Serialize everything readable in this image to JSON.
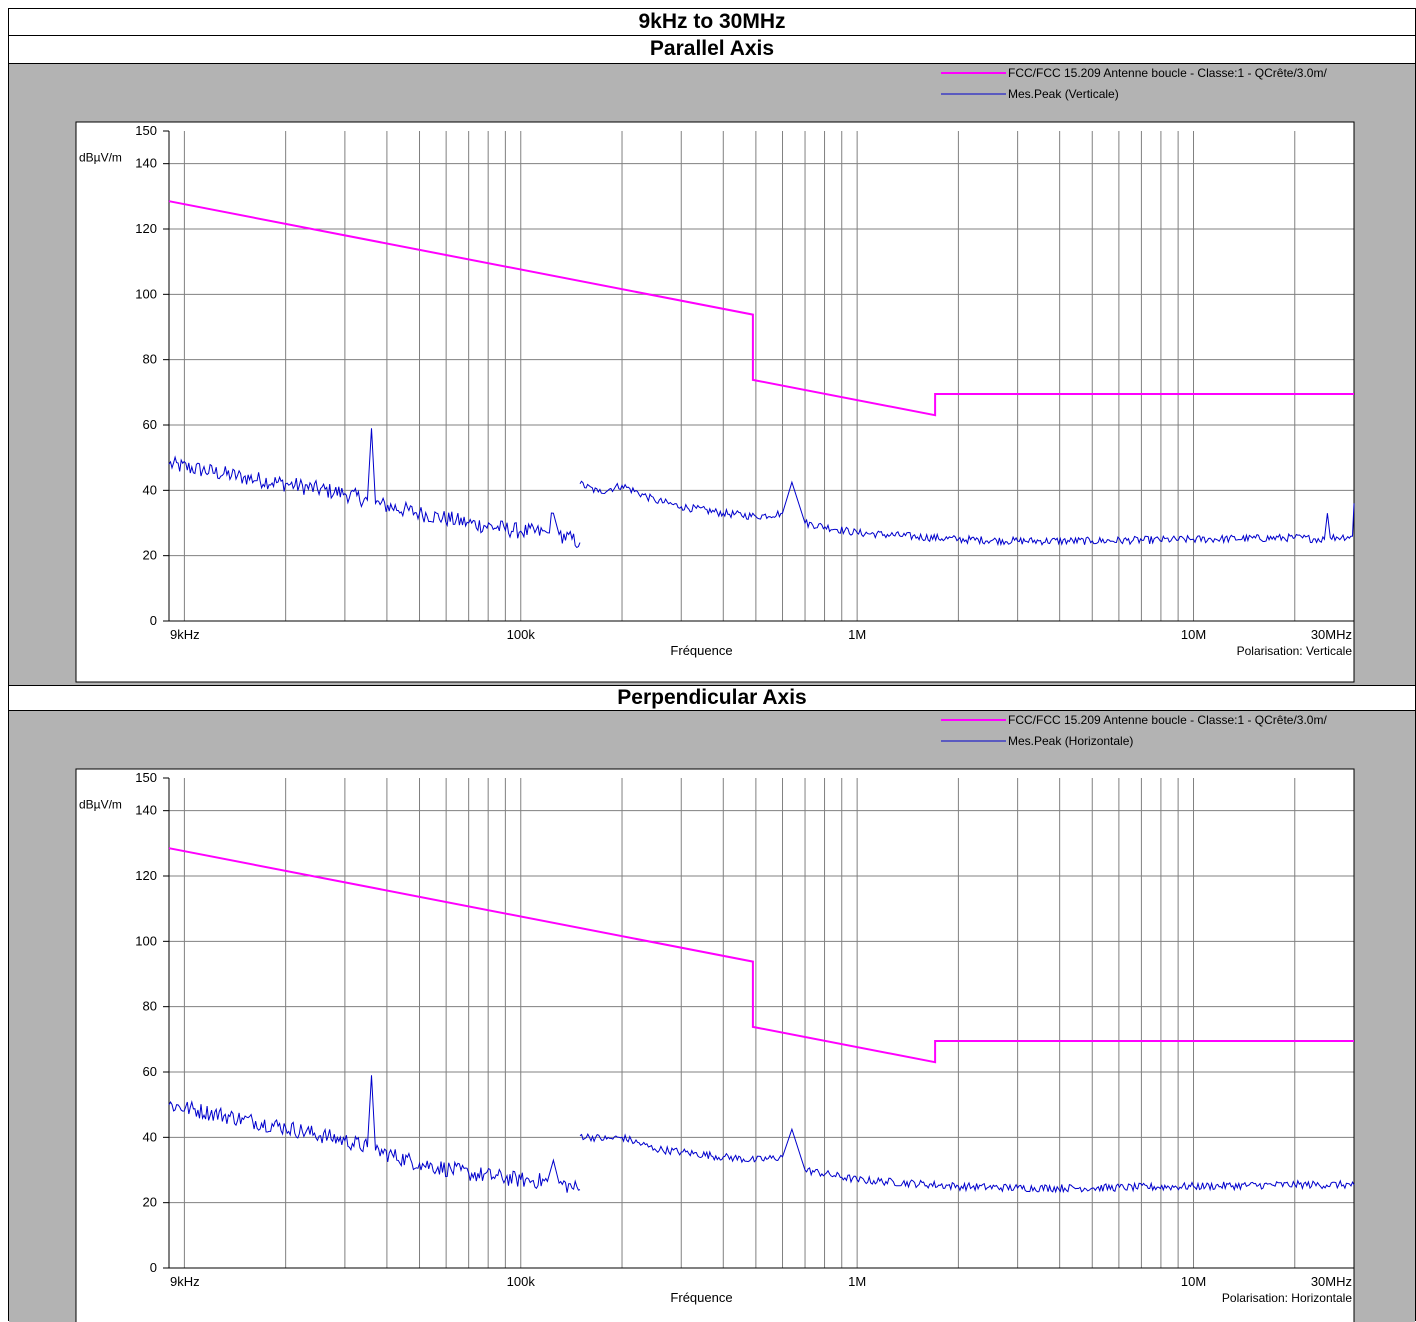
{
  "header": {
    "title": "9kHz to 30MHz"
  },
  "panels": [
    {
      "title": "Parallel Axis",
      "polarisation": "Polarisation: Verticale"
    },
    {
      "title": "Perpendicular Axis",
      "polarisation": "Polarisation: Horizontale"
    }
  ],
  "colors": {
    "limit": "#ff00ff",
    "measurement": "#0000cc",
    "panel_bg": "#b3b3b3",
    "plot_bg": "#ffffff",
    "grid": "#808080"
  },
  "chart_data": [
    {
      "type": "line",
      "title": "Parallel Axis",
      "ylabel": "dBµV/m",
      "xlabel": "Fréquence",
      "x_scale": "log",
      "xlim": [
        9000,
        30000000
      ],
      "ylim": [
        0,
        150
      ],
      "y_ticks": [
        0,
        20,
        40,
        60,
        80,
        100,
        120,
        140,
        150
      ],
      "x_tick_labels": [
        {
          "value": 9000,
          "label": "9kHz"
        },
        {
          "value": 100000,
          "label": "100k"
        },
        {
          "value": 1000000,
          "label": "1M"
        },
        {
          "value": 10000000,
          "label": "10M"
        },
        {
          "value": 30000000,
          "label": "30MHz"
        }
      ],
      "grid": true,
      "legend_position": "top-right",
      "polarisation": "Polarisation: Verticale",
      "series": [
        {
          "name": "FCC/FCC  15.209 Antenne boucle - Classe:1 - QCrête/3.0m/",
          "style": "limit",
          "points": [
            [
              9000,
              128.5
            ],
            [
              490000,
              93.8
            ],
            [
              490000,
              73.8
            ],
            [
              1705000,
              63.0
            ],
            [
              1705000,
              69.5
            ],
            [
              30000000,
              69.5
            ]
          ]
        },
        {
          "name": "Mes.Peak (Verticale)",
          "style": "measurement",
          "segments": [
            [
              [
                9000,
                48
              ],
              [
                15000,
                44
              ],
              [
                20000,
                42
              ],
              [
                30000,
                39
              ],
              [
                35000,
                37
              ],
              [
                36000,
                59
              ],
              [
                37000,
                36
              ],
              [
                50000,
                33
              ],
              [
                70000,
                30
              ],
              [
                100000,
                27.5
              ],
              [
                120000,
                27
              ],
              [
                125000,
                33
              ],
              [
                130000,
                26.5
              ],
              [
                150000,
                24
              ]
            ],
            [
              [
                150000,
                42
              ],
              [
                170000,
                39.5
              ],
              [
                200000,
                41.5
              ],
              [
                250000,
                37
              ],
              [
                300000,
                35
              ],
              [
                400000,
                33
              ],
              [
                500000,
                32
              ],
              [
                600000,
                33
              ],
              [
                640000,
                42.5
              ],
              [
                700000,
                30
              ],
              [
                1000000,
                27
              ],
              [
                2000000,
                25
              ],
              [
                3000000,
                24.5
              ],
              [
                5000000,
                24.5
              ],
              [
                10000000,
                25
              ],
              [
                20000000,
                25.5
              ],
              [
                24500000,
                25
              ],
              [
                25000000,
                33
              ],
              [
                25500000,
                25.5
              ],
              [
                29700000,
                26
              ],
              [
                30000000,
                36
              ]
            ]
          ]
        }
      ]
    },
    {
      "type": "line",
      "title": "Perpendicular Axis",
      "ylabel": "dBµV/m",
      "xlabel": "Fréquence",
      "x_scale": "log",
      "xlim": [
        9000,
        30000000
      ],
      "ylim": [
        0,
        150
      ],
      "y_ticks": [
        0,
        20,
        40,
        60,
        80,
        100,
        120,
        140,
        150
      ],
      "x_tick_labels": [
        {
          "value": 9000,
          "label": "9kHz"
        },
        {
          "value": 100000,
          "label": "100k"
        },
        {
          "value": 1000000,
          "label": "1M"
        },
        {
          "value": 10000000,
          "label": "10M"
        },
        {
          "value": 30000000,
          "label": "30MHz"
        }
      ],
      "grid": true,
      "legend_position": "top-right",
      "polarisation": "Polarisation: Horizontale",
      "series": [
        {
          "name": "FCC/FCC  15.209 Antenne boucle - Classe:1 - QCrête/3.0m/",
          "style": "limit",
          "points": [
            [
              9000,
              128.5
            ],
            [
              490000,
              93.8
            ],
            [
              490000,
              73.8
            ],
            [
              1705000,
              63.0
            ],
            [
              1705000,
              69.5
            ],
            [
              30000000,
              69.5
            ]
          ]
        },
        {
          "name": "Mes.Peak (Horizontale)",
          "style": "measurement",
          "segments": [
            [
              [
                9000,
                50
              ],
              [
                15000,
                45.5
              ],
              [
                20000,
                43
              ],
              [
                30000,
                39
              ],
              [
                35000,
                37
              ],
              [
                36000,
                59
              ],
              [
                37000,
                36
              ],
              [
                50000,
                32
              ],
              [
                70000,
                29
              ],
              [
                100000,
                27
              ],
              [
                120000,
                26.5
              ],
              [
                125000,
                33
              ],
              [
                130000,
                26
              ],
              [
                150000,
                24
              ]
            ],
            [
              [
                150000,
                40.5
              ],
              [
                180000,
                39.5
              ],
              [
                200000,
                40
              ],
              [
                250000,
                36.5
              ],
              [
                300000,
                35.5
              ],
              [
                400000,
                34
              ],
              [
                500000,
                33
              ],
              [
                600000,
                34
              ],
              [
                640000,
                42.5
              ],
              [
                700000,
                30
              ],
              [
                1000000,
                27
              ],
              [
                2000000,
                25
              ],
              [
                3000000,
                24.5
              ],
              [
                5000000,
                24.5
              ],
              [
                10000000,
                25
              ],
              [
                20000000,
                25.5
              ],
              [
                30000000,
                25.5
              ]
            ]
          ]
        }
      ]
    }
  ]
}
